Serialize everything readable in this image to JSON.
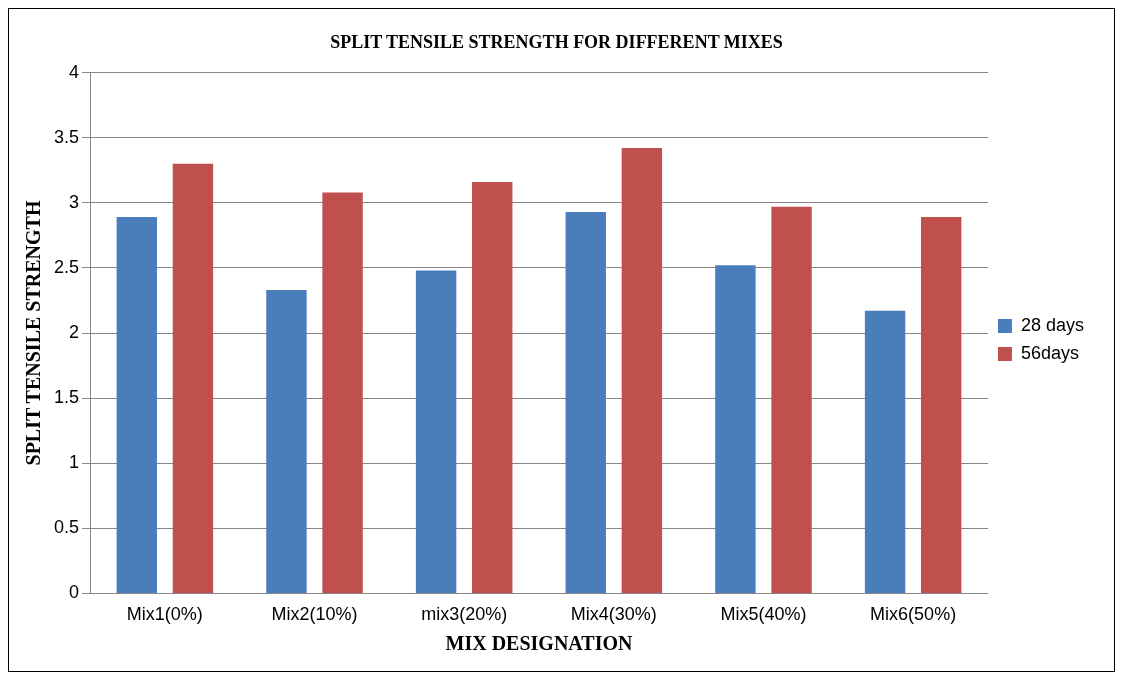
{
  "chart_data": {
    "type": "bar",
    "title": "SPLIT TENSILE STRENGTH FOR DIFFERENT MIXES",
    "xlabel": "MIX DESIGNATION",
    "ylabel": "SPLIT TENSILE STRENGTH",
    "categories": [
      "Mix1(0%)",
      "Mix2(10%)",
      "mix3(20%)",
      "Mix4(30%)",
      "Mix5(40%)",
      "Mix6(50%)"
    ],
    "series": [
      {
        "name": "28 days",
        "color": "#4a7ebb",
        "values": [
          2.89,
          2.33,
          2.48,
          2.93,
          2.52,
          2.17
        ]
      },
      {
        "name": "56days",
        "color": "#c0504d",
        "values": [
          3.3,
          3.08,
          3.16,
          3.42,
          2.97,
          2.89
        ]
      }
    ],
    "ylim": [
      0,
      4
    ],
    "yticks": [
      0,
      0.5,
      1,
      1.5,
      2,
      2.5,
      3,
      3.5,
      4
    ],
    "grid": "y",
    "legend": "right"
  }
}
